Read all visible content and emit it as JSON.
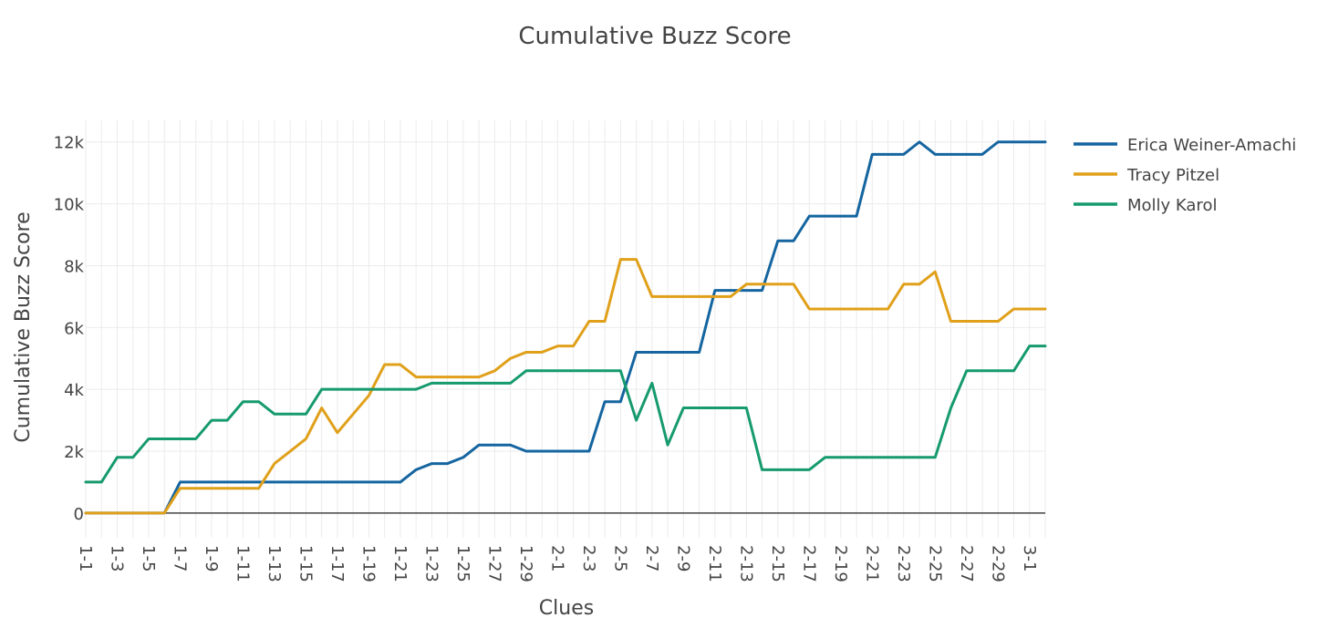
{
  "chart_data": {
    "type": "line",
    "title": "Cumulative Buzz Score",
    "xlabel": "Clues",
    "ylabel": "Cumulative Buzz Score",
    "ylim": [
      -800,
      12700
    ],
    "y_ticks": [
      0,
      2000,
      4000,
      6000,
      8000,
      10000,
      12000
    ],
    "y_tick_labels": [
      "0",
      "2k",
      "4k",
      "6k",
      "8k",
      "10k",
      "12k"
    ],
    "categories": [
      "1-1",
      "1-2",
      "1-3",
      "1-4",
      "1-5",
      "1-6",
      "1-7",
      "1-8",
      "1-9",
      "1-10",
      "1-11",
      "1-12",
      "1-13",
      "1-14",
      "1-15",
      "1-16",
      "1-17",
      "1-18",
      "1-19",
      "1-20",
      "1-21",
      "1-22",
      "1-23",
      "1-24",
      "1-25",
      "1-26",
      "1-27",
      "1-28",
      "1-29",
      "1-30",
      "2-1",
      "2-2",
      "2-3",
      "2-4",
      "2-5",
      "2-6",
      "2-7",
      "2-8",
      "2-9",
      "2-10",
      "2-11",
      "2-12",
      "2-13",
      "2-14",
      "2-15",
      "2-16",
      "2-17",
      "2-18",
      "2-19",
      "2-20",
      "2-21",
      "2-22",
      "2-23",
      "2-24",
      "2-25",
      "2-26",
      "2-27",
      "2-28",
      "2-29",
      "2-30",
      "3-1",
      "3-2"
    ],
    "x_tick_labels": [
      "1-1",
      "1-3",
      "1-5",
      "1-7",
      "1-9",
      "1-11",
      "1-13",
      "1-15",
      "1-17",
      "1-19",
      "1-21",
      "1-23",
      "1-25",
      "1-27",
      "1-29",
      "2-1",
      "2-3",
      "2-5",
      "2-7",
      "2-9",
      "2-11",
      "2-13",
      "2-15",
      "2-17",
      "2-19",
      "2-21",
      "2-23",
      "2-25",
      "2-27",
      "2-29",
      "3-1"
    ],
    "grid": true,
    "legend_position": "top-right",
    "series": [
      {
        "name": "Erica Weiner-Amachi",
        "color": "#1565a0",
        "values": [
          0,
          0,
          0,
          0,
          0,
          0,
          1000,
          1000,
          1000,
          1000,
          1000,
          1000,
          1000,
          1000,
          1000,
          1000,
          1000,
          1000,
          1000,
          1000,
          1000,
          1400,
          1600,
          1600,
          1800,
          2200,
          2200,
          2200,
          2000,
          2000,
          2000,
          2000,
          2000,
          3600,
          3600,
          5200,
          5200,
          5200,
          5200,
          5200,
          7200,
          7200,
          7200,
          7200,
          8800,
          8800,
          9600,
          9600,
          9600,
          9600,
          11600,
          11600,
          11600,
          12000,
          11600,
          11600,
          11600,
          11600,
          12000,
          12000,
          12000,
          12000
        ]
      },
      {
        "name": "Tracy Pitzel",
        "color": "#e0a01a",
        "values": [
          0,
          0,
          0,
          0,
          0,
          0,
          800,
          800,
          800,
          800,
          800,
          800,
          1600,
          2000,
          2400,
          3400,
          2600,
          3200,
          3800,
          4800,
          4800,
          4400,
          4400,
          4400,
          4400,
          4400,
          4600,
          5000,
          5200,
          5200,
          5400,
          5400,
          6200,
          6200,
          8200,
          8200,
          7000,
          7000,
          7000,
          7000,
          7000,
          7000,
          7400,
          7400,
          7400,
          7400,
          6600,
          6600,
          6600,
          6600,
          6600,
          6600,
          7400,
          7400,
          7800,
          6200,
          6200,
          6200,
          6200,
          6600,
          6600,
          6600
        ]
      },
      {
        "name": "Molly Karol",
        "color": "#169a6e",
        "values": [
          1000,
          1000,
          1800,
          1800,
          2400,
          2400,
          2400,
          2400,
          3000,
          3000,
          3600,
          3600,
          3200,
          3200,
          3200,
          4000,
          4000,
          4000,
          4000,
          4000,
          4000,
          4000,
          4200,
          4200,
          4200,
          4200,
          4200,
          4200,
          4600,
          4600,
          4600,
          4600,
          4600,
          4600,
          4600,
          3000,
          4200,
          2200,
          3400,
          3400,
          3400,
          3400,
          3400,
          1400,
          1400,
          1400,
          1400,
          1800,
          1800,
          1800,
          1800,
          1800,
          1800,
          1800,
          1800,
          3400,
          4600,
          4600,
          4600,
          4600,
          5400,
          5400
        ]
      }
    ]
  }
}
